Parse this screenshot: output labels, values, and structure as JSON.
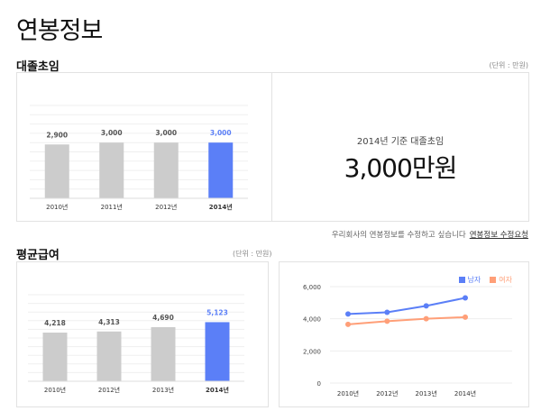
{
  "page": {
    "title": "연봉정보"
  },
  "starting_salary": {
    "title": "대졸초임",
    "unit": "(단위 : 만원)",
    "highlight_caption": "2014년 기준 대졸초임",
    "highlight_value": "3,000만원"
  },
  "notice": {
    "text": "우리회사의 연봉정보를 수정하고 싶습니다",
    "link": "연봉정보 수정요청"
  },
  "average_salary": {
    "title": "평균급여",
    "unit": "(단위 : 만원)"
  },
  "colors": {
    "bar_gray": "#cccccc",
    "bar_highlight": "#5b7ff7",
    "male": "#5b7ff7",
    "female": "#ff9f78"
  },
  "chart_data": [
    {
      "type": "bar",
      "name": "대졸초임",
      "categories": [
        "2010년",
        "2011년",
        "2012년",
        "2014년"
      ],
      "values": [
        2900,
        3000,
        3000,
        3000
      ],
      "value_labels": [
        "2,900",
        "3,000",
        "3,000",
        "3,000"
      ],
      "highlight_index": 3,
      "ylim": [
        0,
        5000
      ],
      "grid": true
    },
    {
      "type": "bar",
      "name": "평균급여",
      "categories": [
        "2010년",
        "2012년",
        "2013년",
        "2014년"
      ],
      "values": [
        4218,
        4313,
        4690,
        5123
      ],
      "value_labels": [
        "4,218",
        "4,313",
        "4,690",
        "5,123"
      ],
      "highlight_index": 3,
      "ylim": [
        0,
        7500
      ],
      "grid": true
    },
    {
      "type": "line",
      "categories": [
        "2010년",
        "2012년",
        "2013년",
        "2014년"
      ],
      "yticks": [
        "6,000",
        "4,000",
        "2,000",
        "0"
      ],
      "ylim": [
        0,
        6000
      ],
      "legend_position": "top-right",
      "series": [
        {
          "name": "남자",
          "values": [
            4300,
            4400,
            4800,
            5300
          ]
        },
        {
          "name": "여자",
          "values": [
            3650,
            3850,
            4000,
            4100
          ]
        }
      ]
    }
  ]
}
